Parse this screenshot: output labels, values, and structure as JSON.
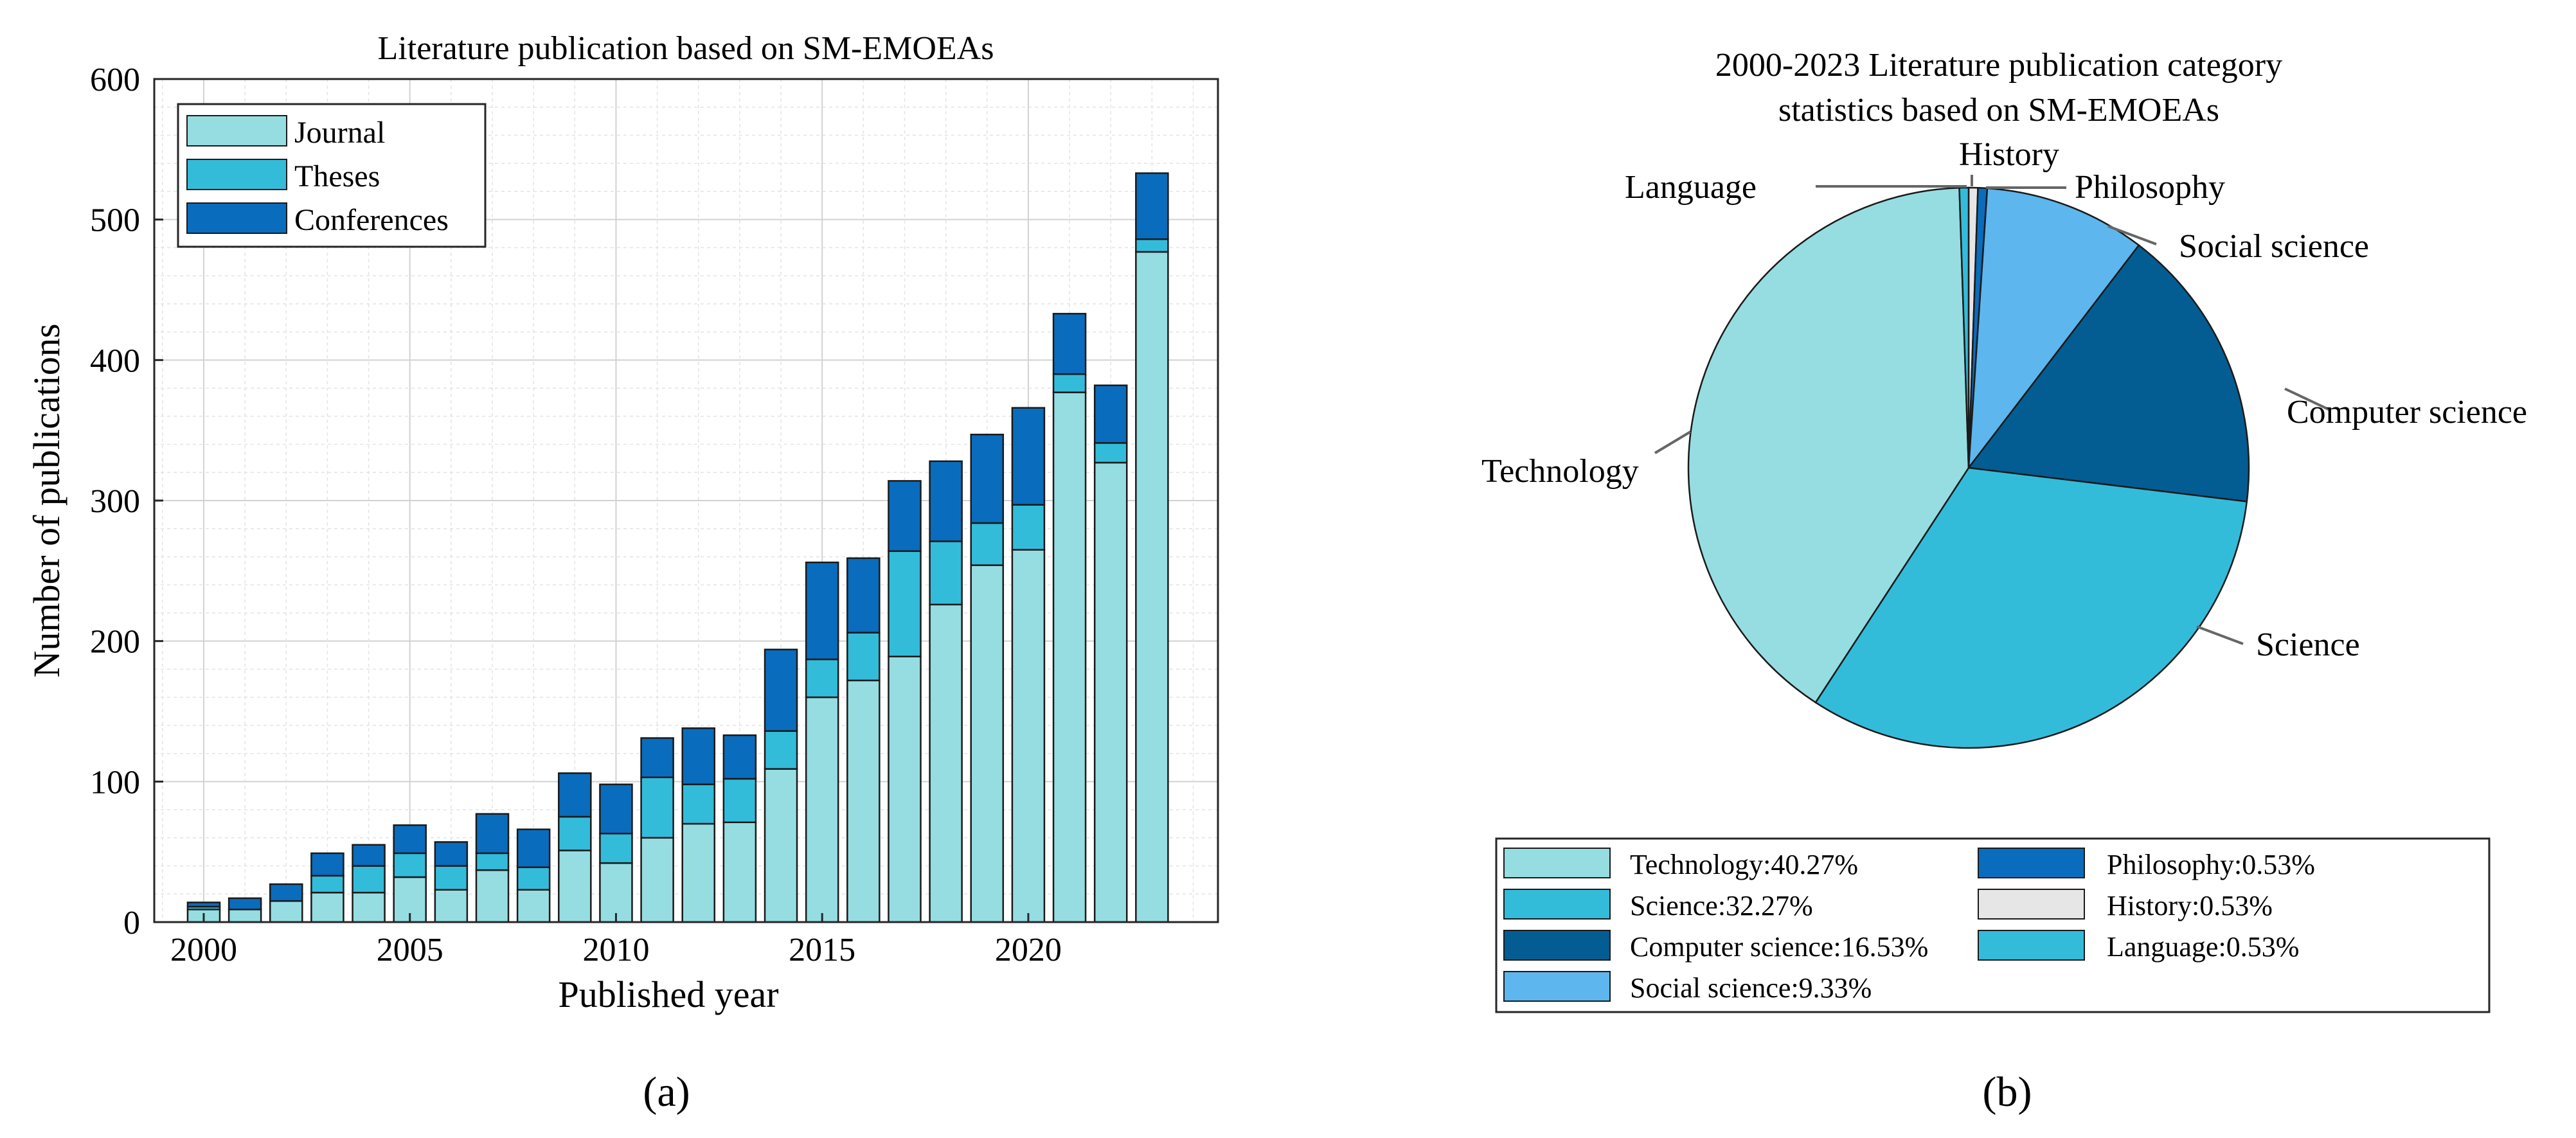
{
  "colors": {
    "journal": "#96dde2",
    "theses": "#33bcda",
    "conferences": "#0a6cbc",
    "technology": "#96dde2",
    "science": "#33bcda",
    "computer_science": "#035d92",
    "social_science": "#5db6ed",
    "philosophy": "#0a6cbc",
    "history": "#e6e6e6",
    "language": "#33bcda",
    "grid": "#e3e3e3"
  },
  "panel_labels": {
    "a": "(a)",
    "b": "(b)"
  },
  "chart_data": [
    {
      "type": "bar",
      "stacked": true,
      "title": "Literature publication based on SM-EMOEAs",
      "xlabel": "Published year",
      "ylabel": "Number of publications",
      "xticks": [
        "2000",
        "2005",
        "2010",
        "2015",
        "2020"
      ],
      "yticks": [
        "0",
        "100",
        "200",
        "300",
        "400",
        "500",
        "600"
      ],
      "ylim": [
        0,
        600
      ],
      "grid": true,
      "legend_position": "top-left",
      "categories": [
        2000,
        2001,
        2002,
        2003,
        2004,
        2005,
        2006,
        2007,
        2008,
        2009,
        2010,
        2011,
        2012,
        2013,
        2014,
        2015,
        2016,
        2017,
        2018,
        2019,
        2020,
        2021,
        2022,
        2023
      ],
      "series": [
        {
          "name": "Journal",
          "values": [
            9,
            9,
            15,
            21,
            21,
            32,
            23,
            37,
            23,
            51,
            42,
            60,
            70,
            71,
            109,
            160,
            172,
            189,
            226,
            254,
            265,
            377,
            327,
            477
          ]
        },
        {
          "name": "Theses",
          "values": [
            2,
            0,
            0,
            12,
            19,
            17,
            17,
            12,
            16,
            24,
            21,
            43,
            28,
            31,
            27,
            27,
            34,
            75,
            45,
            30,
            32,
            13,
            14,
            9
          ]
        },
        {
          "name": "Conferences",
          "values": [
            3,
            8,
            12,
            16,
            15,
            20,
            17,
            28,
            27,
            31,
            35,
            28,
            40,
            31,
            58,
            69,
            53,
            50,
            57,
            63,
            69,
            43,
            41,
            47
          ]
        }
      ]
    },
    {
      "type": "pie",
      "title_lines": [
        "2000-2023 Literature publication category",
        "statistics based on SM-EMOEAs"
      ],
      "legend_position": "bottom",
      "slices": [
        {
          "name": "Technology",
          "value": 40.27,
          "legend": "Technology:40.27%"
        },
        {
          "name": "Science",
          "value": 32.27,
          "legend": "Science:32.27%"
        },
        {
          "name": "Computer science",
          "value": 16.53,
          "legend": "Computer science:16.53%"
        },
        {
          "name": "Social science",
          "value": 9.33,
          "legend": "Social science:9.33%"
        },
        {
          "name": "Philosophy",
          "value": 0.53,
          "legend": "Philosophy:0.53%"
        },
        {
          "name": "History",
          "value": 0.53,
          "legend": "History:0.53%"
        },
        {
          "name": "Language",
          "value": 0.53,
          "legend": "Language:0.53%"
        }
      ]
    }
  ]
}
